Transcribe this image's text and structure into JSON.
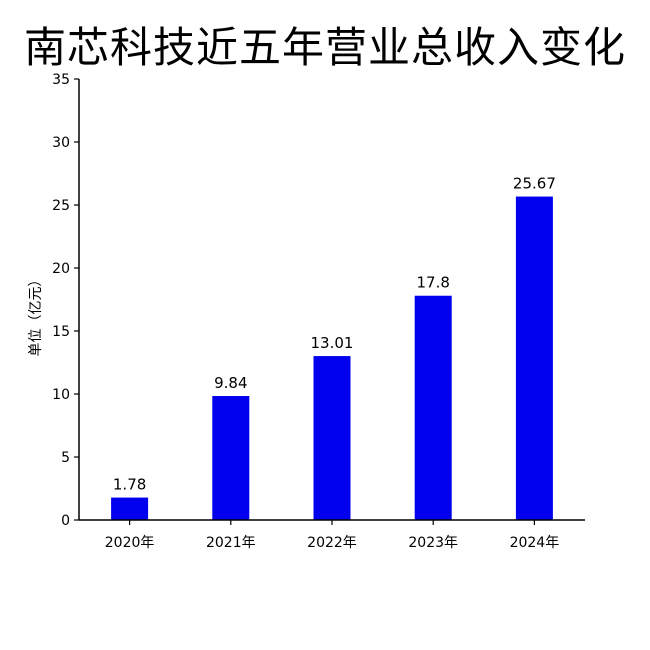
{
  "chart_data": {
    "type": "bar",
    "title": "南芯科技近五年营业总收入变化",
    "xlabel": "",
    "ylabel": "单位（亿元）",
    "categories": [
      "2020年",
      "2021年",
      "2022年",
      "2023年",
      "2024年"
    ],
    "values": [
      1.78,
      9.84,
      13.01,
      17.8,
      25.67
    ],
    "data_labels": [
      "1.78",
      "9.84",
      "13.01",
      "17.8",
      "25.67"
    ],
    "ylim": [
      0,
      35
    ],
    "yticks": [
      0,
      5,
      10,
      15,
      20,
      25,
      30,
      35
    ],
    "ytick_labels": [
      "0",
      "5",
      "10",
      "15",
      "20",
      "25",
      "30",
      "35"
    ],
    "bar_color": "#0000ee",
    "grid": false,
    "legend": "none"
  }
}
